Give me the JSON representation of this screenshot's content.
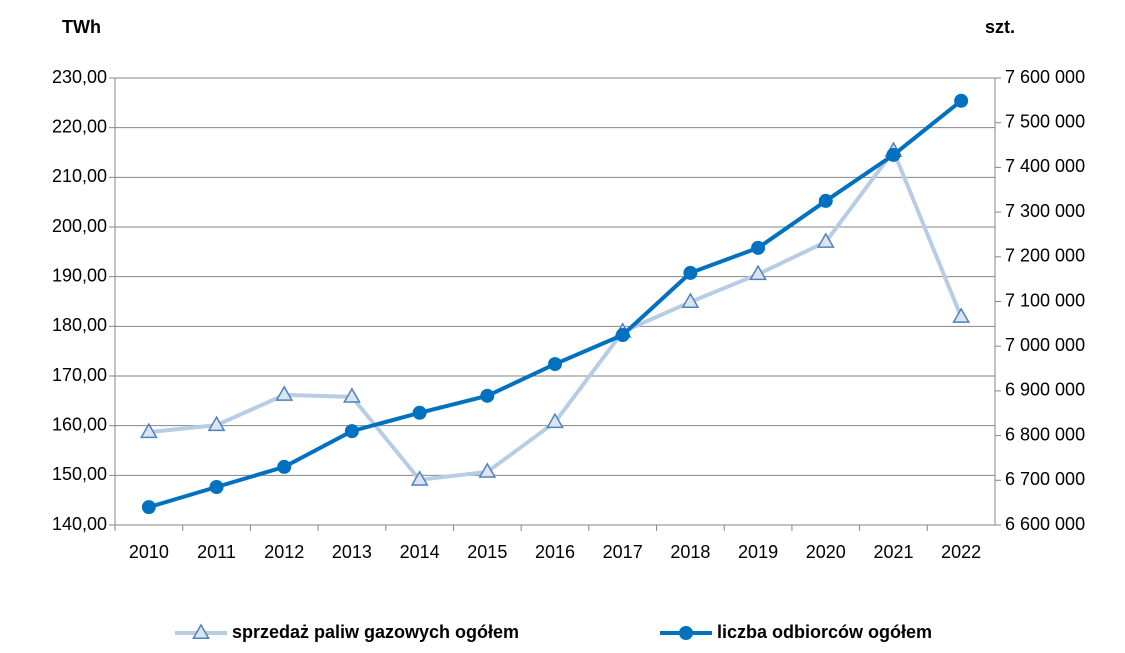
{
  "chart_data": {
    "type": "line",
    "y_label": "TWh",
    "y2_label": "szt.",
    "categories": [
      "2010",
      "2011",
      "2012",
      "2013",
      "2014",
      "2015",
      "2016",
      "2017",
      "2018",
      "2019",
      "2020",
      "2021",
      "2022"
    ],
    "series": [
      {
        "name": "sprzedaż paliw gazowych ogółem",
        "color": "#b8cce4",
        "marker": "triangle",
        "marker_color": "#4f81bd",
        "values": [
          158.7,
          160.1,
          166.2,
          165.8,
          149.1,
          150.7,
          160.7,
          178.9,
          184.9,
          190.5,
          197.0,
          215.3,
          181.9
        ]
      },
      {
        "name": "liczba odbiorców ogółem",
        "color": "#0070c0",
        "marker": "circle",
        "axis": "y2",
        "values": [
          6640000,
          6685000,
          6730000,
          6810000,
          6851000,
          6889000,
          6960000,
          7025000,
          7164000,
          7220000,
          7325000,
          7428000,
          7549000
        ]
      }
    ],
    "ylim": [
      140,
      230
    ],
    "yticks": [
      {
        "value": 140,
        "label": "140,00"
      },
      {
        "value": 150,
        "label": "150,00"
      },
      {
        "value": 160,
        "label": "160,00"
      },
      {
        "value": 170,
        "label": "170,00"
      },
      {
        "value": 180,
        "label": "180,00"
      },
      {
        "value": 190,
        "label": "190,00"
      },
      {
        "value": 200,
        "label": "200,00"
      },
      {
        "value": 210,
        "label": "210,00"
      },
      {
        "value": 220,
        "label": "220,00"
      },
      {
        "value": 230,
        "label": "230,00"
      }
    ],
    "y2lim": [
      6600000,
      7600000
    ],
    "y2ticks": [
      {
        "value": 6600000,
        "label": "6 600 000"
      },
      {
        "value": 6700000,
        "label": "6 700 000"
      },
      {
        "value": 6800000,
        "label": "6 800 000"
      },
      {
        "value": 6900000,
        "label": "6 900 000"
      },
      {
        "value": 7000000,
        "label": "7 000 000"
      },
      {
        "value": 7100000,
        "label": "7 100 000"
      },
      {
        "value": 7200000,
        "label": "7 200 000"
      },
      {
        "value": 7300000,
        "label": "7 300 000"
      },
      {
        "value": 7400000,
        "label": "7 400 000"
      },
      {
        "value": 7500000,
        "label": "7 500 000"
      },
      {
        "value": 7600000,
        "label": "7 600 000"
      }
    ],
    "grid": true,
    "legend": "bottom"
  }
}
